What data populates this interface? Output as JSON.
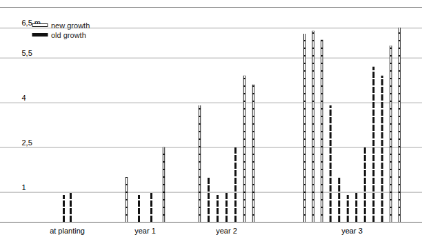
{
  "chart_data": {
    "type": "bar",
    "series": [
      {
        "name": "new growth",
        "color": "#ffffff"
      },
      {
        "name": "old growth",
        "color": "#111111"
      }
    ],
    "categories": [
      "at planting",
      "year 1",
      "year 2",
      "year 3"
    ],
    "groups": [
      {
        "name": "at planting",
        "culms": [
          {
            "height": 0.9,
            "growth": "old growth"
          },
          {
            "height": 1.0,
            "growth": "old growth"
          }
        ]
      },
      {
        "name": "year 1",
        "culms": [
          {
            "height": 1.5,
            "growth": "new growth"
          },
          {
            "height": 0.9,
            "growth": "old growth"
          },
          {
            "height": 1.0,
            "growth": "old growth"
          },
          {
            "height": 2.5,
            "growth": "new growth"
          }
        ]
      },
      {
        "name": "year 2",
        "culms": [
          {
            "height": 3.9,
            "growth": "new growth"
          },
          {
            "height": 1.5,
            "growth": "old growth"
          },
          {
            "height": 0.9,
            "growth": "old growth"
          },
          {
            "height": 1.0,
            "growth": "old growth"
          },
          {
            "height": 2.5,
            "growth": "old growth"
          },
          {
            "height": 4.9,
            "growth": "new growth"
          },
          {
            "height": 4.6,
            "growth": "new growth"
          }
        ]
      },
      {
        "name": "year 3",
        "culms": [
          {
            "height": 6.3,
            "growth": "new growth"
          },
          {
            "height": 6.4,
            "growth": "new growth"
          },
          {
            "height": 6.1,
            "growth": "new growth"
          },
          {
            "height": 3.9,
            "growth": "old growth"
          },
          {
            "height": 1.5,
            "growth": "old growth"
          },
          {
            "height": 0.9,
            "growth": "old growth"
          },
          {
            "height": 1.0,
            "growth": "old growth"
          },
          {
            "height": 2.5,
            "growth": "old growth"
          },
          {
            "height": 5.2,
            "growth": "old growth"
          },
          {
            "height": 4.9,
            "growth": "old growth"
          },
          {
            "height": 5.9,
            "growth": "new growth"
          },
          {
            "height": 6.5,
            "growth": "new growth"
          }
        ]
      }
    ],
    "ylim": [
      0,
      7.2
    ],
    "yticks": [
      1,
      {
        "value": 2.5,
        "label": "2,5"
      },
      4,
      {
        "value": 5.5,
        "label": "5,5"
      },
      {
        "value": 6.5,
        "label": "6,5 m"
      }
    ],
    "grid": true,
    "legend": "top-left"
  }
}
